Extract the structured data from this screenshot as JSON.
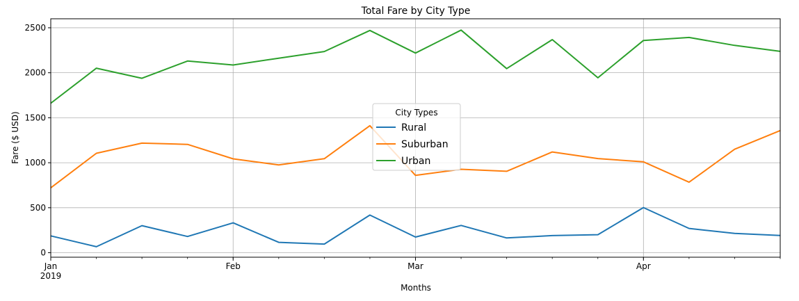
{
  "chart_data": {
    "type": "line",
    "title": "Total Fare by City Type",
    "xlabel": "Months",
    "ylabel": "Fare ($ USD)",
    "x": [
      "2019-01-06",
      "2019-01-13",
      "2019-01-20",
      "2019-01-27",
      "2019-02-03",
      "2019-02-10",
      "2019-02-17",
      "2019-02-24",
      "2019-03-03",
      "2019-03-10",
      "2019-03-17",
      "2019-03-24",
      "2019-03-31",
      "2019-04-07",
      "2019-04-14",
      "2019-04-21",
      "2019-04-28"
    ],
    "x_range": [
      "2019-01-06",
      "2019-04-28"
    ],
    "x_ticks": [
      {
        "date": "2019-01-06",
        "label": "Jan",
        "sublabel": "2019"
      },
      {
        "date": "2019-02-03",
        "label": "Feb",
        "sublabel": ""
      },
      {
        "date": "2019-03-03",
        "label": "Mar",
        "sublabel": ""
      },
      {
        "date": "2019-04-07",
        "label": "Apr",
        "sublabel": ""
      }
    ],
    "ylim": [
      -50,
      2600
    ],
    "y_ticks": [
      0,
      500,
      1000,
      1500,
      2000,
      2500
    ],
    "grid": true,
    "legend": {
      "title": "City Types",
      "position": "center"
    },
    "series": [
      {
        "name": "Rural",
        "color": "#1f77b4",
        "values": [
          187,
          67,
          301,
          180,
          332,
          115,
          96,
          418,
          174,
          303,
          164,
          190,
          200,
          502,
          270,
          214,
          191
        ]
      },
      {
        "name": "Suburban",
        "color": "#ff7f0e",
        "values": [
          721,
          1105,
          1218,
          1204,
          1043,
          975,
          1045,
          1412,
          859,
          927,
          905,
          1120,
          1046,
          1010,
          784,
          1150,
          1358
        ]
      },
      {
        "name": "Urban",
        "color": "#2ca02c",
        "values": [
          1661,
          2051,
          1939,
          2130,
          2086,
          2162,
          2236,
          2470,
          2219,
          2474,
          2046,
          2368,
          1944,
          2359,
          2392,
          2304,
          2238
        ]
      }
    ]
  }
}
